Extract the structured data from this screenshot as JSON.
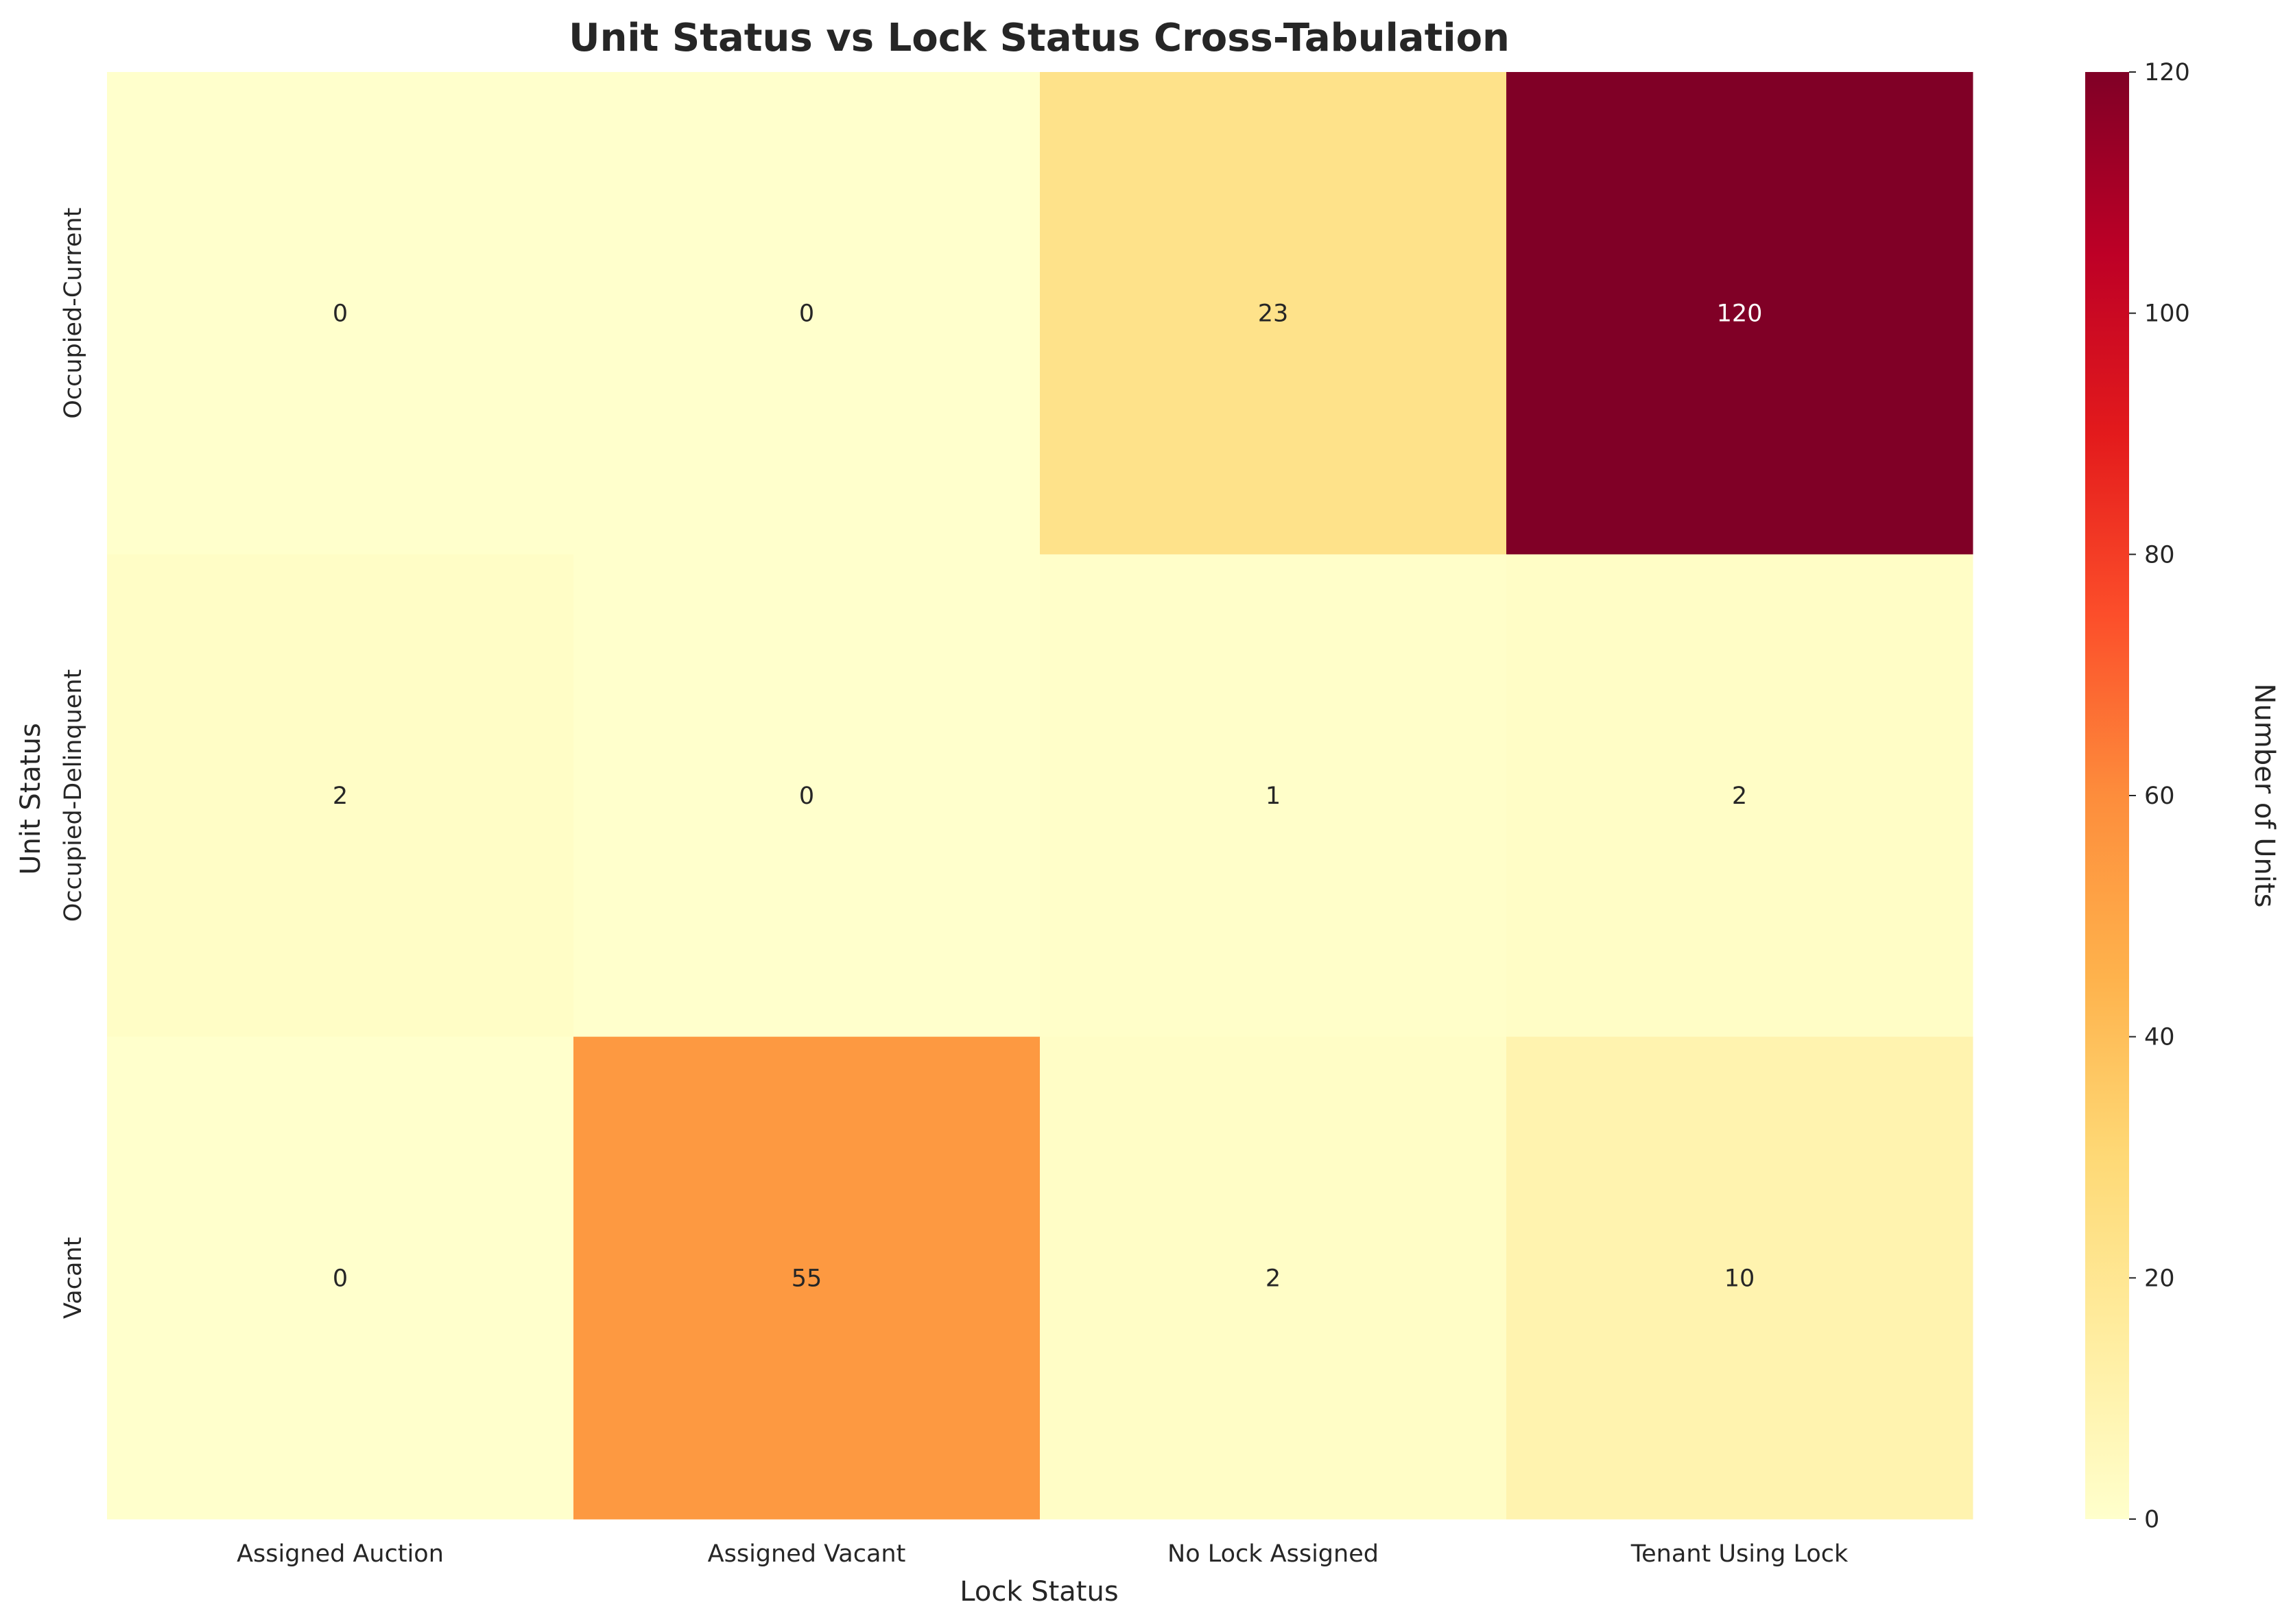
{
  "chart_data": {
    "type": "heatmap",
    "title": "Unit Status vs Lock Status Cross-Tabulation",
    "xlabel": "Lock Status",
    "ylabel": "Unit Status",
    "x_categories": [
      "Assigned Auction",
      "Assigned Vacant",
      "No Lock Assigned",
      "Tenant Using Lock"
    ],
    "y_categories": [
      "Occupied-Current",
      "Occupied-Delinquent",
      "Vacant"
    ],
    "values": [
      [
        0,
        0,
        23,
        120
      ],
      [
        2,
        0,
        1,
        2
      ],
      [
        0,
        55,
        2,
        10
      ]
    ],
    "colorbar": {
      "label": "Number of Units",
      "min": 0,
      "max": 120,
      "ticks": [
        "0",
        "20",
        "40",
        "60",
        "80",
        "100",
        "120"
      ],
      "colormap": "YlOrRd"
    },
    "grid": false
  }
}
